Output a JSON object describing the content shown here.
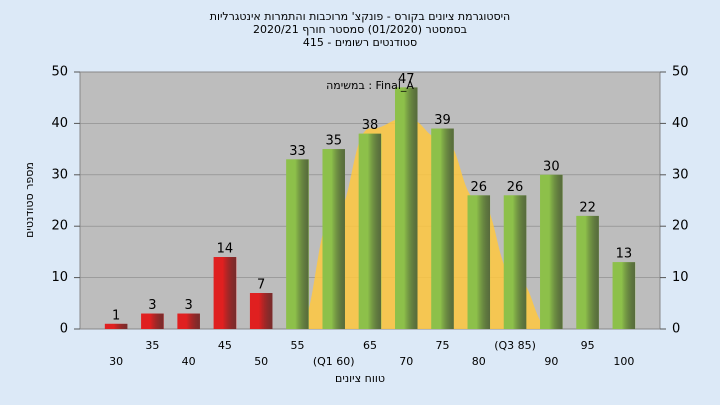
{
  "chart_data": {
    "type": "bar",
    "title": [
      "היסטוגרמת ציונים בקורס - פונקצ' מרוכבות והתמרות אינטגרליות",
      "בסמסטר  (01/2020)  סמסטר חורף  2020/21",
      "סטודנטים רשומים - 415"
    ],
    "annotation": "במשימה : Final_A",
    "x_label": "טווח ציונים",
    "y_label": "מספר סטודנטים",
    "categories": [
      "30",
      "35",
      "40",
      "45",
      "50",
      "55",
      "(Q1 60)",
      "65",
      "70",
      "75",
      "80",
      "(Q3 85)",
      "90",
      "95",
      "100"
    ],
    "values": [
      1,
      3,
      3,
      14,
      7,
      33,
      35,
      38,
      47,
      39,
      26,
      26,
      30,
      22,
      13
    ],
    "colors": [
      "#e02020",
      "#e02020",
      "#e02020",
      "#e02020",
      "#e02020",
      "#8dc04a",
      "#8dc04a",
      "#8dc04a",
      "#8dc04a",
      "#8dc04a",
      "#8dc04a",
      "#8dc04a",
      "#8dc04a",
      "#8dc04a",
      "#8dc04a"
    ],
    "curve": {
      "color": "#ffc840",
      "values": [
        null,
        null,
        null,
        null,
        null,
        0,
        22,
        39,
        41,
        37,
        25,
        10,
        0,
        null,
        null
      ]
    },
    "ylim": [
      0,
      50
    ],
    "yticks": [
      0,
      10,
      20,
      30,
      40,
      50
    ],
    "y2lim": [
      0,
      50
    ],
    "y2ticks": [
      0,
      10,
      20,
      30,
      40,
      50
    ],
    "grid": true
  }
}
